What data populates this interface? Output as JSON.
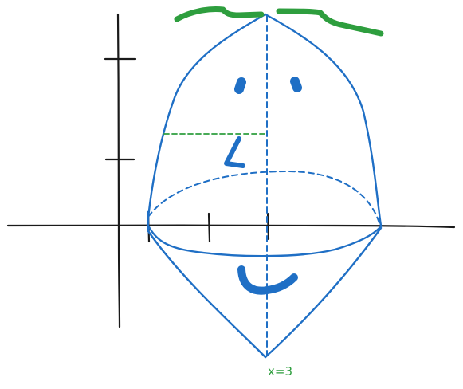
{
  "labels": {
    "x_value": "x=3"
  },
  "colors": {
    "axis": "#1a1a1a",
    "solid": "#1f6fc5",
    "accent": "#2e9e3e"
  }
}
